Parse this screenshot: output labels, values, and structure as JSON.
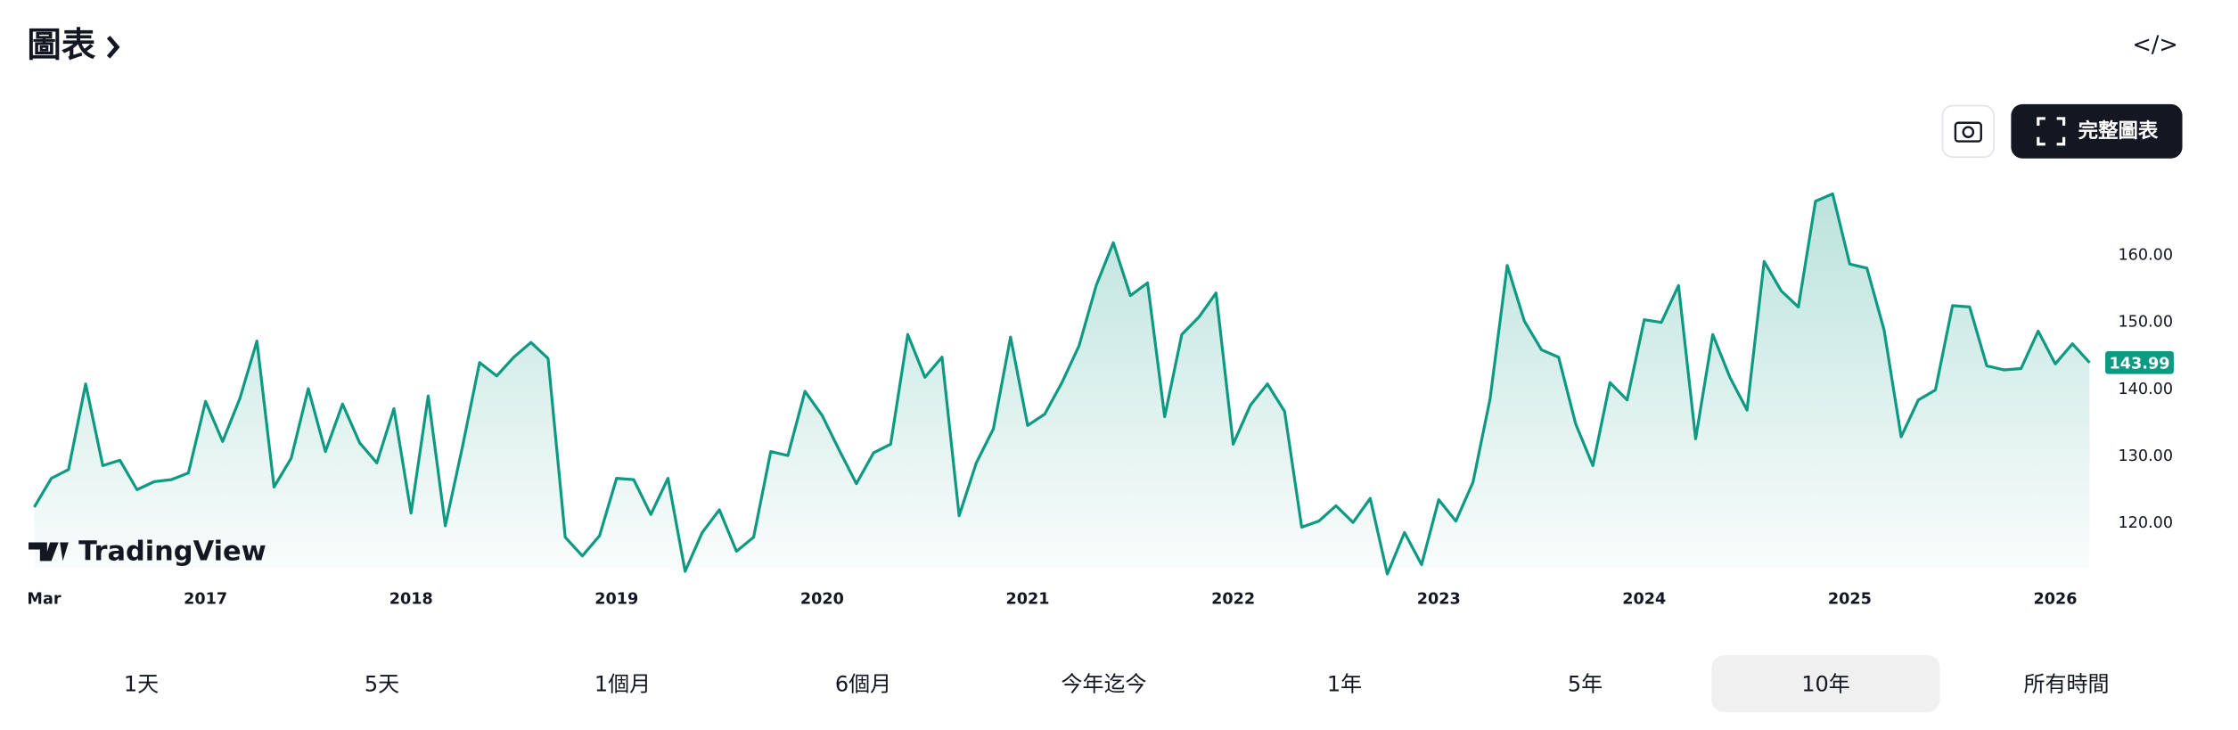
{
  "header": {
    "title": "圖表"
  },
  "toolbar": {
    "full_chart": "完整圖表"
  },
  "watermark": "TradingView",
  "ranges": [
    "1天",
    "5天",
    "1個月",
    "6個月",
    "今年迄今",
    "1年",
    "5年",
    "10年",
    "所有時間"
  ],
  "selected_range": 7,
  "chart_data": {
    "type": "area",
    "color": "#0e9a82",
    "values": [
      122.4,
      126.7,
      128,
      140.8,
      128.6,
      129.4,
      125,
      126.2,
      126.5,
      127.5,
      138.2,
      132.2,
      138.6,
      147.2,
      125.4,
      129.7,
      140.1,
      130.7,
      137.8,
      132,
      129,
      137.1,
      121.5,
      139,
      119.6,
      131.4,
      144,
      142,
      144.8,
      147,
      144.6,
      117.9,
      115.1,
      118.1,
      126.7,
      126.5,
      121.3,
      126.7,
      112.8,
      118.6,
      122,
      115.8,
      117.9,
      130.7,
      130.1,
      139.7,
      136.1,
      130.9,
      125.9,
      130.5,
      131.8,
      148.2,
      141.8,
      144.8,
      121.1,
      129,
      134.1,
      147.8,
      134.6,
      136.3,
      141,
      146.5,
      155.5,
      161.9,
      154,
      155.9,
      135.9,
      148.2,
      150.8,
      154.4,
      131.8,
      137.6,
      140.8,
      136.7,
      119.4,
      120.3,
      122.6,
      120.1,
      123.7,
      112.4,
      118.6,
      113.8,
      123.5,
      120.3,
      126.1,
      138.6,
      158.5,
      150.2,
      145.9,
      144.8,
      134.8,
      128.6,
      141,
      138.4,
      150.4,
      150,
      155.5,
      132.6,
      148.2,
      141.8,
      136.9,
      159.1,
      154.7,
      152.3,
      168.1,
      169.2,
      158.7,
      158.1,
      148.9,
      132.9,
      138.4,
      139.9,
      152.5,
      152.3,
      143.5,
      142.9,
      143.1,
      148.7,
      143.8,
      146.8,
      143.99
    ],
    "ylim": [
      112,
      173
    ],
    "yticks": [
      {
        "value": 120,
        "label": "120.00"
      },
      {
        "value": 130,
        "label": "130.00"
      },
      {
        "value": 140,
        "label": "140.00"
      },
      {
        "value": 150,
        "label": "150.00"
      },
      {
        "value": 160,
        "label": "160.00"
      }
    ],
    "xticks": [
      {
        "value": 0,
        "label": "Mar"
      },
      {
        "value": 10,
        "label": "2017"
      },
      {
        "value": 22,
        "label": "2018"
      },
      {
        "value": 34,
        "label": "2019"
      },
      {
        "value": 46,
        "label": "2020"
      },
      {
        "value": 58,
        "label": "2021"
      },
      {
        "value": 70,
        "label": "2022"
      },
      {
        "value": 82,
        "label": "2023"
      },
      {
        "value": 94,
        "label": "2024"
      },
      {
        "value": 106,
        "label": "2025"
      },
      {
        "value": 118,
        "label": "2026"
      }
    ]
  }
}
